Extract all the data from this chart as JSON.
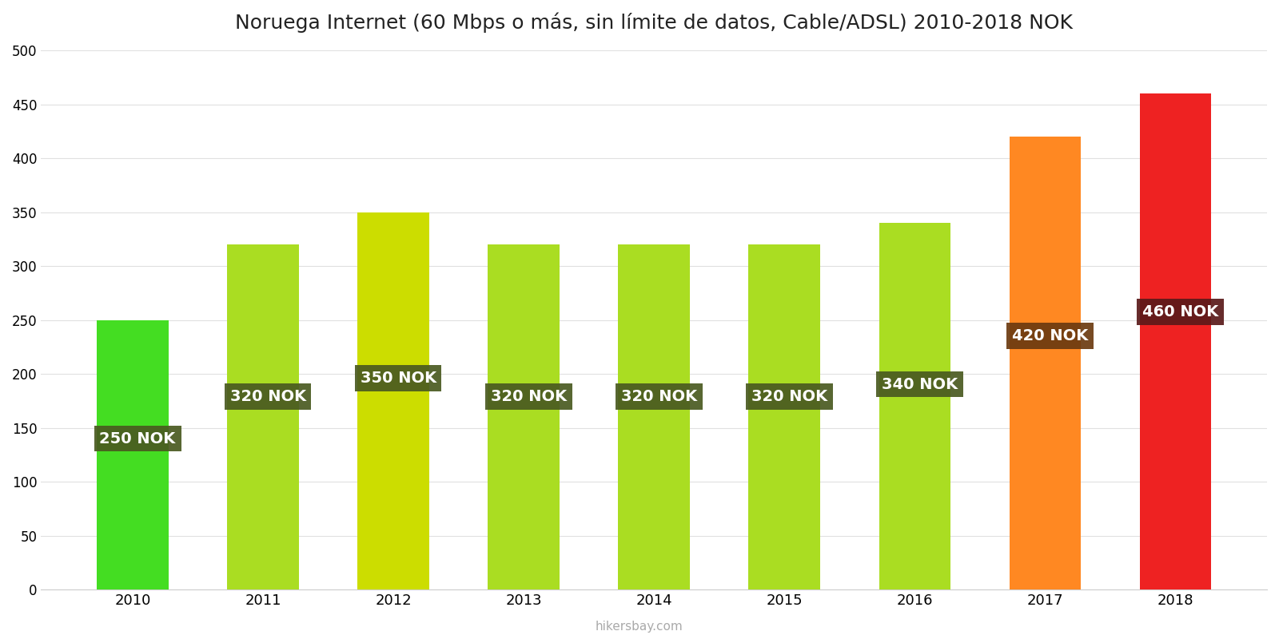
{
  "title": "Noruega Internet (60 Mbps o más, sin límite de datos, Cable/ADSL) 2010-2018 NOK",
  "years": [
    2010,
    2011,
    2012,
    2013,
    2014,
    2015,
    2016,
    2017,
    2018
  ],
  "values": [
    250,
    320,
    350,
    320,
    320,
    320,
    340,
    420,
    460
  ],
  "bar_colors": [
    "#44dd22",
    "#aadd22",
    "#ccdd00",
    "#aadd22",
    "#aadd22",
    "#aadd22",
    "#aadd22",
    "#ff8822",
    "#ee2222"
  ],
  "label_texts": [
    "250 NOK",
    "320 NOK",
    "350 NOK",
    "320 NOK",
    "320 NOK",
    "320 NOK",
    "340 NOK",
    "420 NOK",
    "460 NOK"
  ],
  "label_box_colors": [
    "#4a5a20",
    "#4a5a20",
    "#4a5a20",
    "#4a5a20",
    "#4a5a20",
    "#4a5a20",
    "#4a5a20",
    "#6b3a10",
    "#5a1a1a"
  ],
  "ylim": [
    0,
    500
  ],
  "yticks": [
    0,
    50,
    100,
    150,
    200,
    250,
    300,
    350,
    400,
    450,
    500
  ],
  "title_fontsize": 18,
  "label_text_color": "#ffffff",
  "watermark": "hikersbay.com",
  "background_color": "#ffffff",
  "bar_width": 0.55
}
